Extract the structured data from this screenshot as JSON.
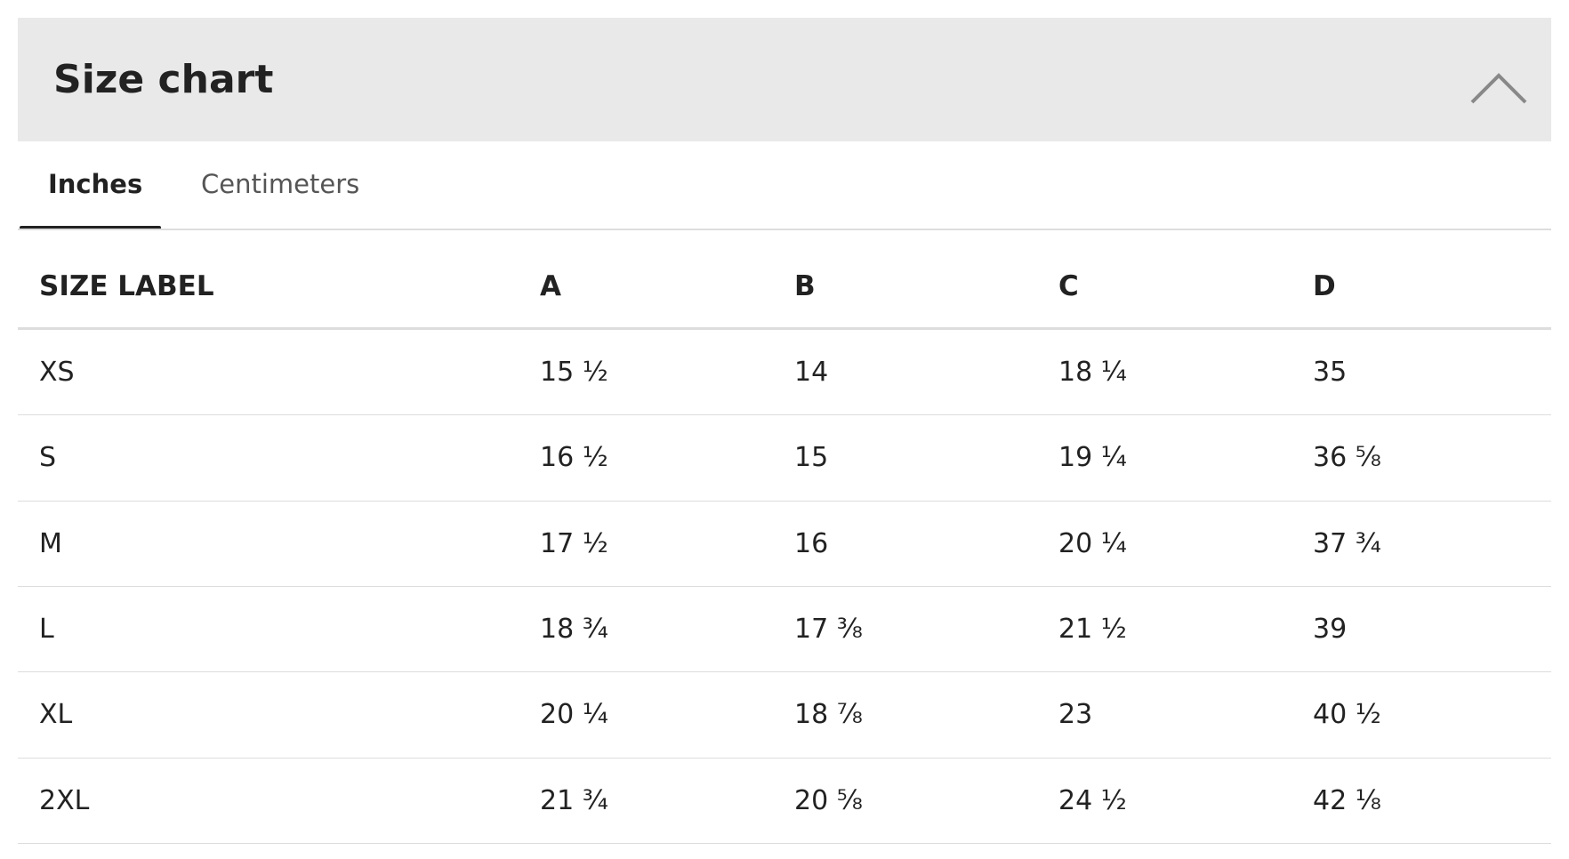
{
  "header": {
    "title": "Size chart"
  },
  "tabs": [
    "Inches",
    "Centimeters"
  ],
  "table": {
    "columns": [
      "SIZE LABEL",
      "A",
      "B",
      "C",
      "D"
    ],
    "rows": [
      [
        "XS",
        "15 ½",
        "14",
        "18 ¼",
        "35"
      ],
      [
        "S",
        "16 ½",
        "15",
        "19 ¼",
        "36 ⅝"
      ],
      [
        "M",
        "17 ½",
        "16",
        "20 ¼",
        "37 ¾"
      ],
      [
        "L",
        "18 ¾",
        "17 ⅜",
        "21 ½",
        "39"
      ],
      [
        "XL",
        "20 ¼",
        "18 ⅞",
        "23",
        "40 ½"
      ],
      [
        "2XL",
        "21 ¾",
        "20 ⅝",
        "24 ½",
        "42 ⅛"
      ]
    ]
  }
}
